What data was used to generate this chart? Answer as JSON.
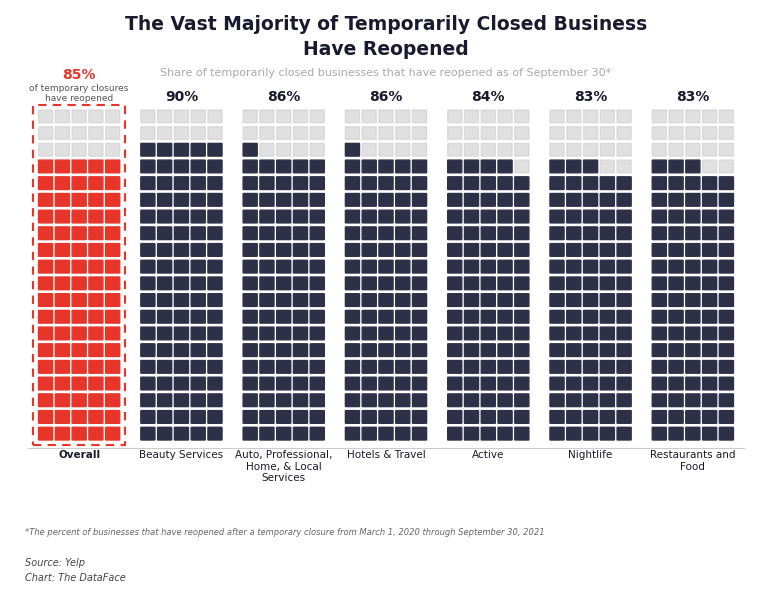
{
  "title_line1": "The Vast Majority of Temporarily Closed Business",
  "title_line2": "Have Reopened",
  "subtitle": "Share of temporarily closed businesses that have reopened as of September 30*",
  "footnote": "*The percent of businesses that have reopened after a temporary closure from March 1, 2020 through September 30, 2021",
  "source_line1": "Source: Yelp",
  "source_line2": "Chart: The DataFace",
  "categories": [
    "Overall",
    "Beauty Services",
    "Auto, Professional,\nHome, & Local\nServices",
    "Hotels & Travel",
    "Active",
    "Nightlife",
    "Restaurants and\nFood"
  ],
  "percentages": [
    85,
    90,
    86,
    86,
    84,
    83,
    83
  ],
  "pct_labels": [
    "85%",
    "90%",
    "86%",
    "86%",
    "84%",
    "83%",
    "83%"
  ],
  "filled_colors": [
    "#e8352a",
    "#2d3047",
    "#2d3047",
    "#2d3047",
    "#2d3047",
    "#2d3047",
    "#2d3047"
  ],
  "unfilled_color": "#d0d0d0",
  "bg_color": "#ffffff",
  "title_color": "#1a1a2e",
  "subtitle_color": "#aaaaaa",
  "rows": 20,
  "cols": 5
}
